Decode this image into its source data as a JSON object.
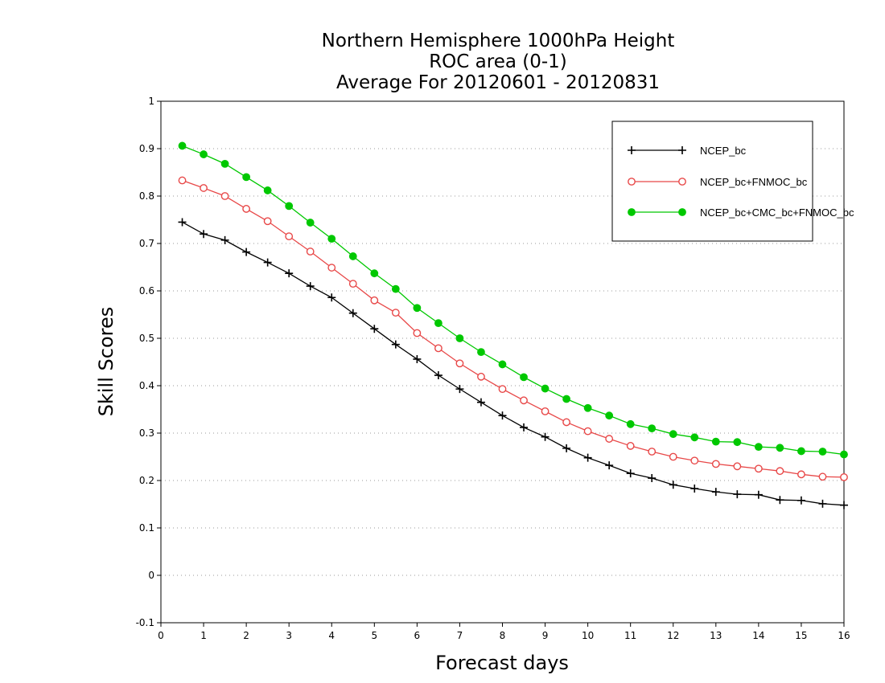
{
  "chart_data": {
    "type": "line",
    "title": [
      "Northern Hemisphere 1000hPa Height",
      "ROC area (0-1)",
      "Average For 20120601 - 20120831"
    ],
    "xlabel": "Forecast days",
    "ylabel": "Skill Scores",
    "xlim": [
      0,
      16
    ],
    "ylim": [
      -0.1,
      1
    ],
    "xticks": [
      "0",
      "1",
      "2",
      "3",
      "4",
      "5",
      "6",
      "7",
      "8",
      "9",
      "10",
      "11",
      "12",
      "13",
      "14",
      "15",
      "16"
    ],
    "yticks": [
      "-0.1",
      "0",
      "0.1",
      "0.2",
      "0.3",
      "0.4",
      "0.5",
      "0.6",
      "0.7",
      "0.8",
      "0.9",
      "1"
    ],
    "grid": "horizontal-dotted",
    "legend_position": "top-right",
    "x": [
      0.5,
      1,
      1.5,
      2,
      2.5,
      3,
      3.5,
      4,
      4.5,
      5,
      5.5,
      6,
      6.5,
      7,
      7.5,
      8,
      8.5,
      9,
      9.5,
      10,
      10.5,
      11,
      11.5,
      12,
      12.5,
      13,
      13.5,
      14,
      14.5,
      15,
      15.5,
      16
    ],
    "series": [
      {
        "name": "NCEP_bc",
        "color": "#000000",
        "marker": "plus",
        "values": [
          0.745,
          0.72,
          0.707,
          0.682,
          0.66,
          0.637,
          0.61,
          0.586,
          0.553,
          0.52,
          0.487,
          0.456,
          0.422,
          0.393,
          0.365,
          0.337,
          0.312,
          0.292,
          0.268,
          0.248,
          0.232,
          0.215,
          0.205,
          0.191,
          0.183,
          0.176,
          0.171,
          0.17,
          0.159,
          0.158,
          0.151,
          0.148
        ]
      },
      {
        "name": "NCEP_bc+FNMOC_bc",
        "color": "#e84848",
        "marker": "open-circle",
        "values": [
          0.833,
          0.817,
          0.8,
          0.773,
          0.747,
          0.715,
          0.683,
          0.649,
          0.615,
          0.58,
          0.554,
          0.511,
          0.479,
          0.447,
          0.419,
          0.393,
          0.369,
          0.346,
          0.323,
          0.304,
          0.288,
          0.273,
          0.261,
          0.25,
          0.242,
          0.235,
          0.23,
          0.225,
          0.22,
          0.213,
          0.208,
          0.207
        ]
      },
      {
        "name": "NCEP_bc+CMC_bc+FNMOC_bc",
        "color": "#00c800",
        "marker": "filled-circle",
        "values": [
          0.906,
          0.888,
          0.868,
          0.84,
          0.812,
          0.779,
          0.744,
          0.71,
          0.673,
          0.637,
          0.604,
          0.564,
          0.532,
          0.5,
          0.471,
          0.445,
          0.418,
          0.394,
          0.372,
          0.353,
          0.337,
          0.319,
          0.31,
          0.298,
          0.291,
          0.282,
          0.281,
          0.271,
          0.269,
          0.262,
          0.261,
          0.255
        ]
      }
    ]
  }
}
